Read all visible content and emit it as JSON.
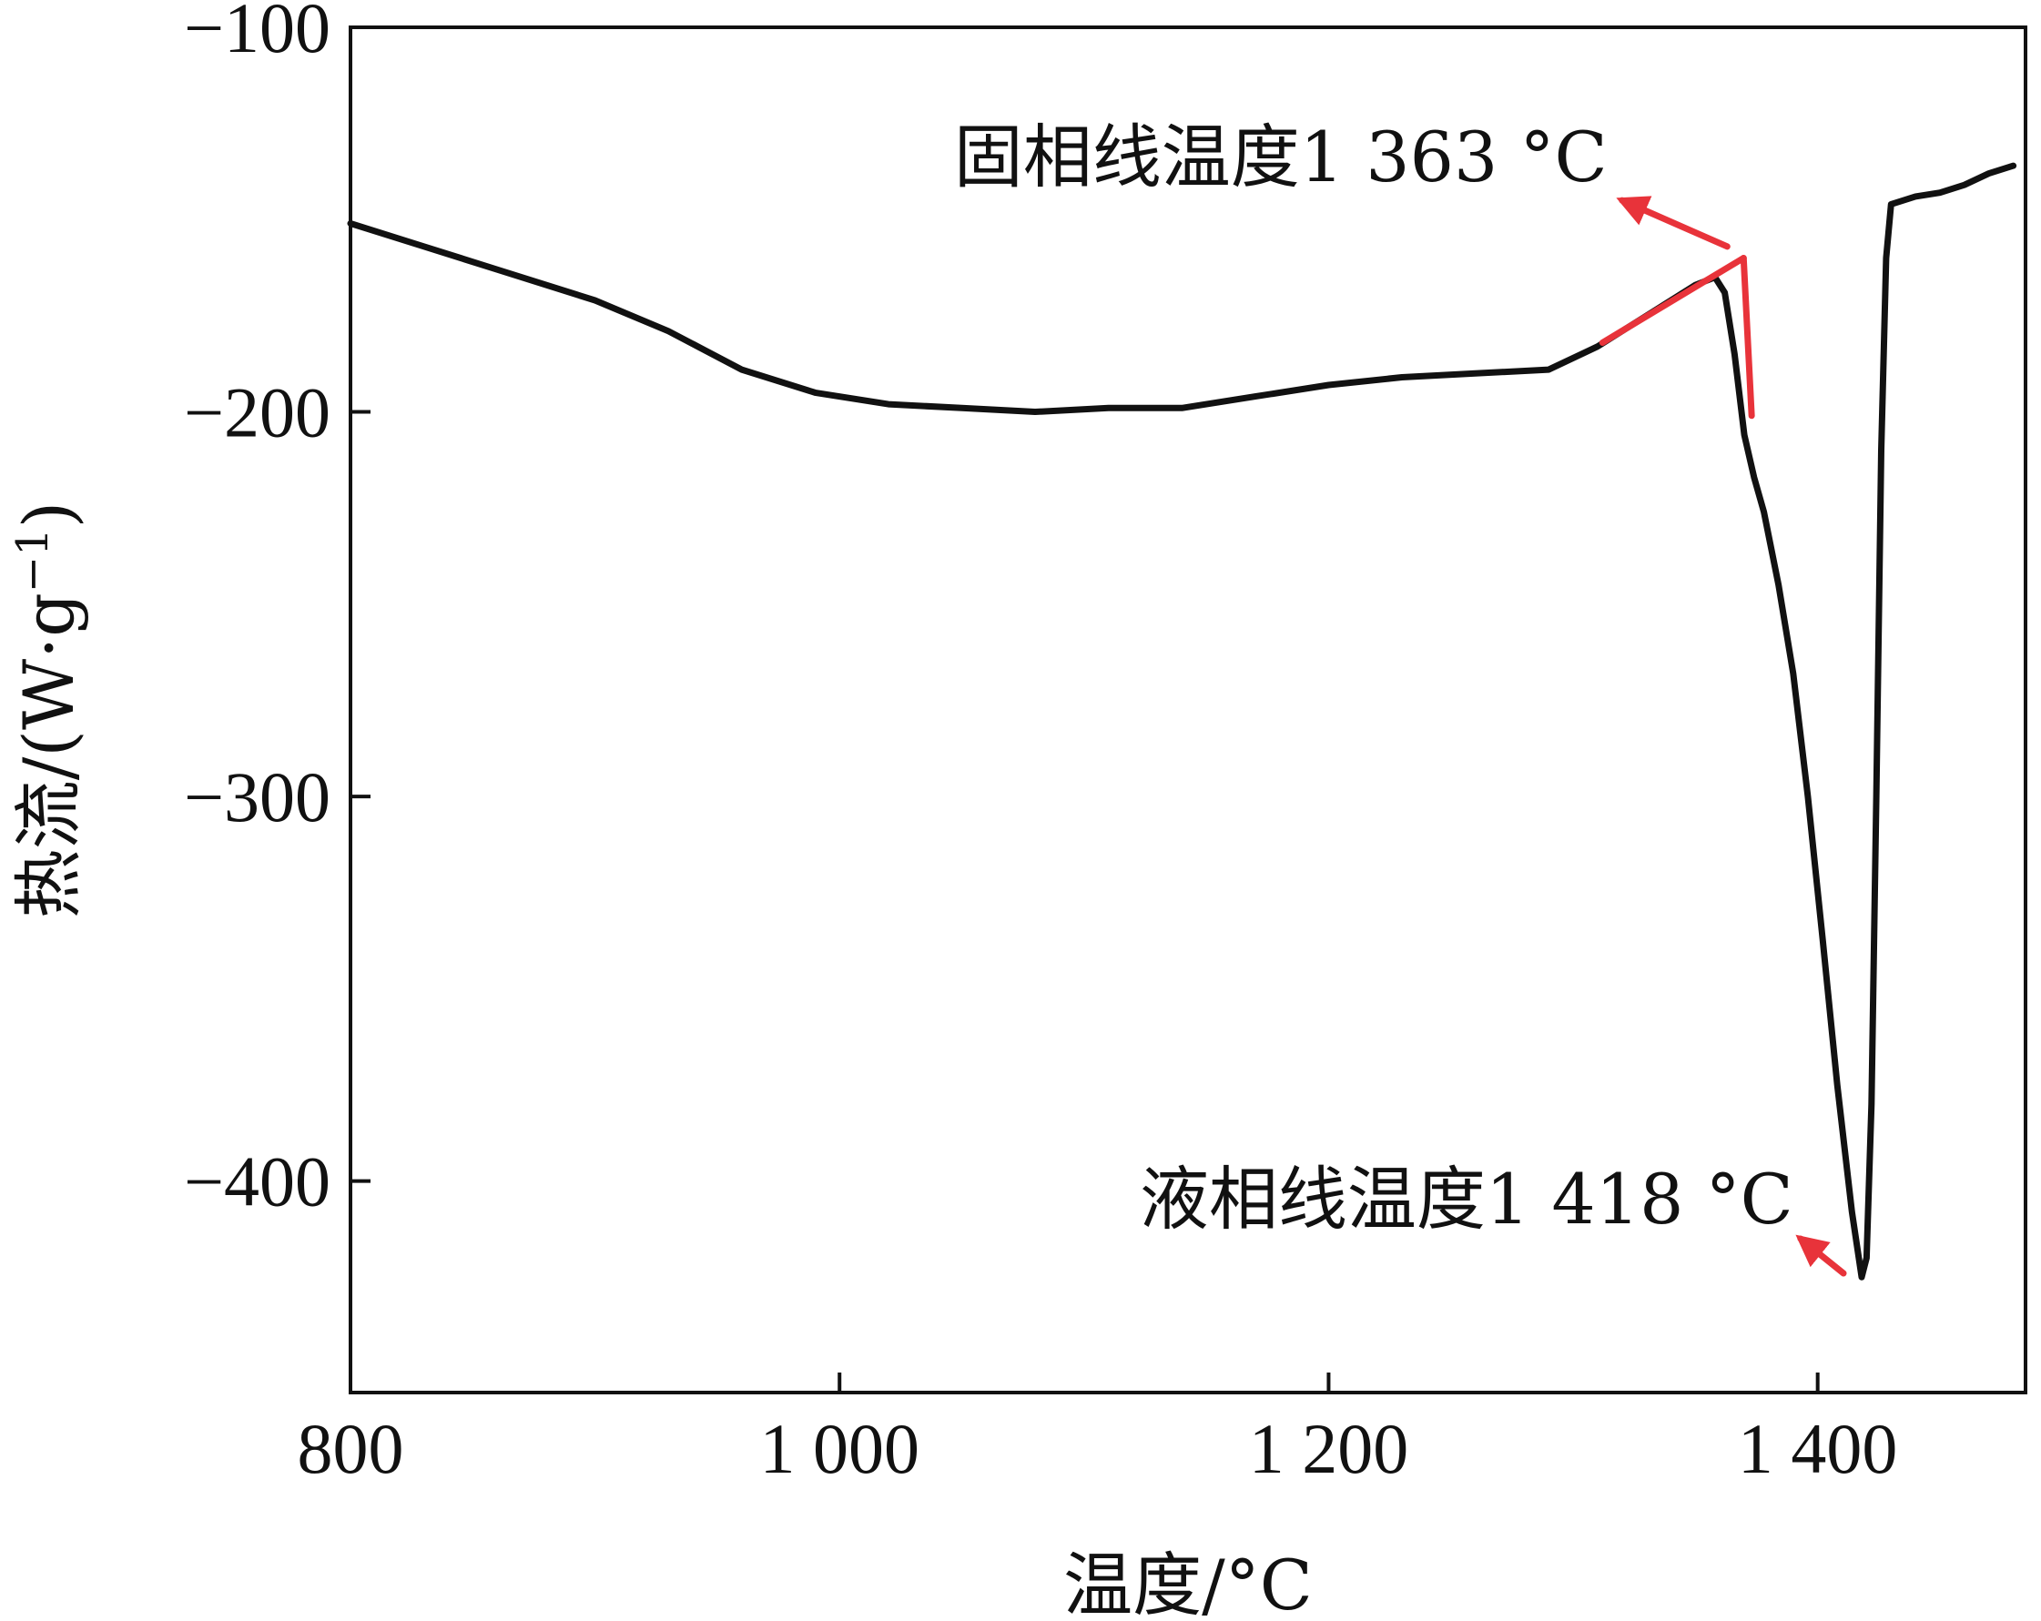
{
  "chart_data": {
    "type": "line",
    "title": "",
    "xlabel": "温度/°C",
    "ylabel": "热流/(W·g",
    "ylabel_superscript": "−1",
    "ylabel_close": ")",
    "xlim": [
      800,
      1485
    ],
    "ylim": [
      -455,
      -100
    ],
    "x_ticks": [
      {
        "value": 800,
        "label": "800"
      },
      {
        "value": 1000,
        "label": "1 000"
      },
      {
        "value": 1200,
        "label": "1 200"
      },
      {
        "value": 1400,
        "label": "1 400"
      }
    ],
    "y_ticks": [
      {
        "value": -100,
        "label": "−100"
      },
      {
        "value": -200,
        "label": "−200"
      },
      {
        "value": -300,
        "label": "−300"
      },
      {
        "value": -400,
        "label": "−400"
      }
    ],
    "grid": false,
    "series": [
      {
        "color": "#111111",
        "x": [
          800,
          830,
          860,
          900,
          930,
          960,
          990,
          1020,
          1050,
          1080,
          1110,
          1140,
          1170,
          1200,
          1230,
          1260,
          1290,
          1310,
          1330,
          1350,
          1358,
          1362,
          1366,
          1370,
          1374,
          1378,
          1384,
          1390,
          1396,
          1402,
          1408,
          1414,
          1418,
          1420,
          1422,
          1424,
          1426,
          1428,
          1430,
          1440,
          1450,
          1460,
          1470,
          1480
        ],
        "y": [
          -151,
          -157,
          -163,
          -171,
          -179,
          -189,
          -195,
          -198,
          -199,
          -200,
          -199,
          -199,
          -196,
          -193,
          -191,
          -190,
          -189,
          -183,
          -175,
          -167,
          -165,
          -169,
          -185,
          -206,
          -217,
          -226,
          -245,
          -268,
          -300,
          -337,
          -375,
          -408,
          -425,
          -420,
          -380,
          -300,
          -210,
          -160,
          -146,
          -144,
          -143,
          -141,
          -138,
          -136
        ]
      }
    ],
    "annotations": [
      {
        "text": "固相线温度1 363 °C",
        "x": 1363,
        "y": -165,
        "color": "#e8333a"
      },
      {
        "text": "液相线温度1 418 °C",
        "x": 1418,
        "y": -425,
        "color": "#e8333a"
      }
    ]
  }
}
